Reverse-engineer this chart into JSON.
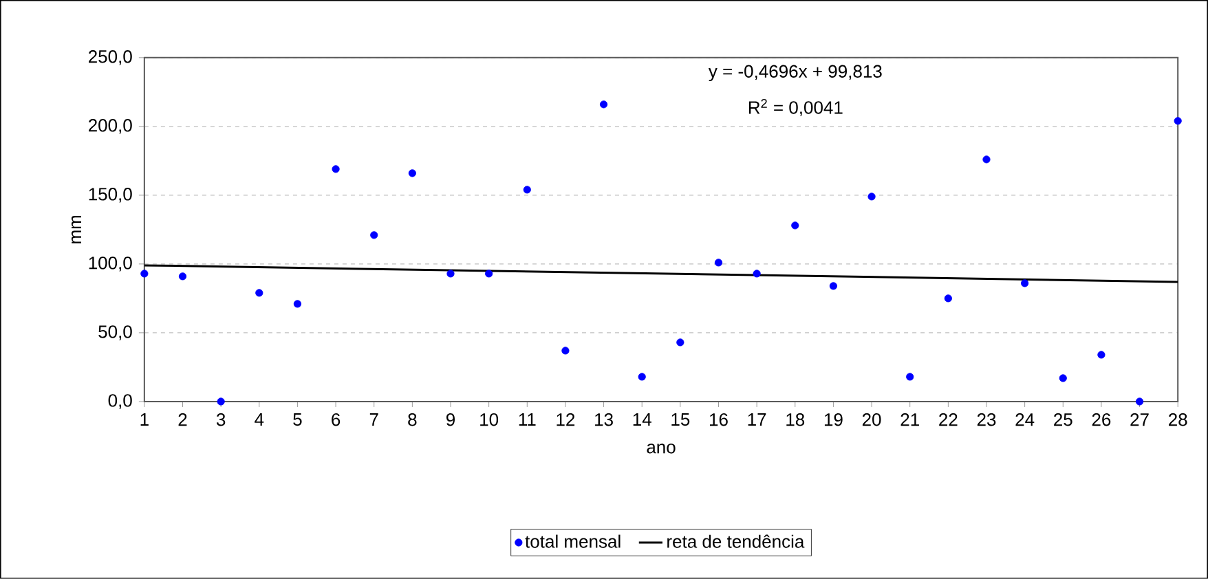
{
  "chart_data": {
    "type": "scatter",
    "xlabel": "ano",
    "ylabel": "mm",
    "x": [
      1,
      2,
      3,
      4,
      5,
      6,
      7,
      8,
      9,
      10,
      11,
      12,
      13,
      14,
      15,
      16,
      17,
      18,
      19,
      20,
      21,
      22,
      23,
      24,
      25,
      26,
      27,
      28
    ],
    "series": [
      {
        "name": "total mensal",
        "color": "#0000ff",
        "marker": "circle",
        "values": [
          93,
          91,
          0,
          79,
          71,
          169,
          121,
          166,
          93,
          93,
          154,
          37,
          216,
          18,
          43,
          101,
          93,
          128,
          84,
          149,
          18,
          75,
          176,
          86,
          17,
          34,
          0,
          204
        ]
      },
      {
        "name": "reta de tendência",
        "type": "line",
        "color": "#000000",
        "marker": "none",
        "x": [
          1,
          28
        ],
        "values": [
          99,
          87
        ]
      }
    ],
    "xlim": [
      1,
      28
    ],
    "xticks": [
      1,
      2,
      3,
      4,
      5,
      6,
      7,
      8,
      9,
      10,
      11,
      12,
      13,
      14,
      15,
      16,
      17,
      18,
      19,
      20,
      21,
      22,
      23,
      24,
      25,
      26,
      27,
      28
    ],
    "ylim": [
      0,
      250
    ],
    "yticks": [
      {
        "value": 0,
        "label": "0,0"
      },
      {
        "value": 50,
        "label": "50,0"
      },
      {
        "value": 100,
        "label": "100,0"
      },
      {
        "value": 150,
        "label": "150,0"
      },
      {
        "value": 200,
        "label": "200,0"
      },
      {
        "value": 250,
        "label": "250,0"
      }
    ],
    "grid": "y",
    "legend": "bottom",
    "annotations": [
      "y = -0,4696x + 99,813",
      "R$^{2}$ = 0,0041"
    ]
  }
}
